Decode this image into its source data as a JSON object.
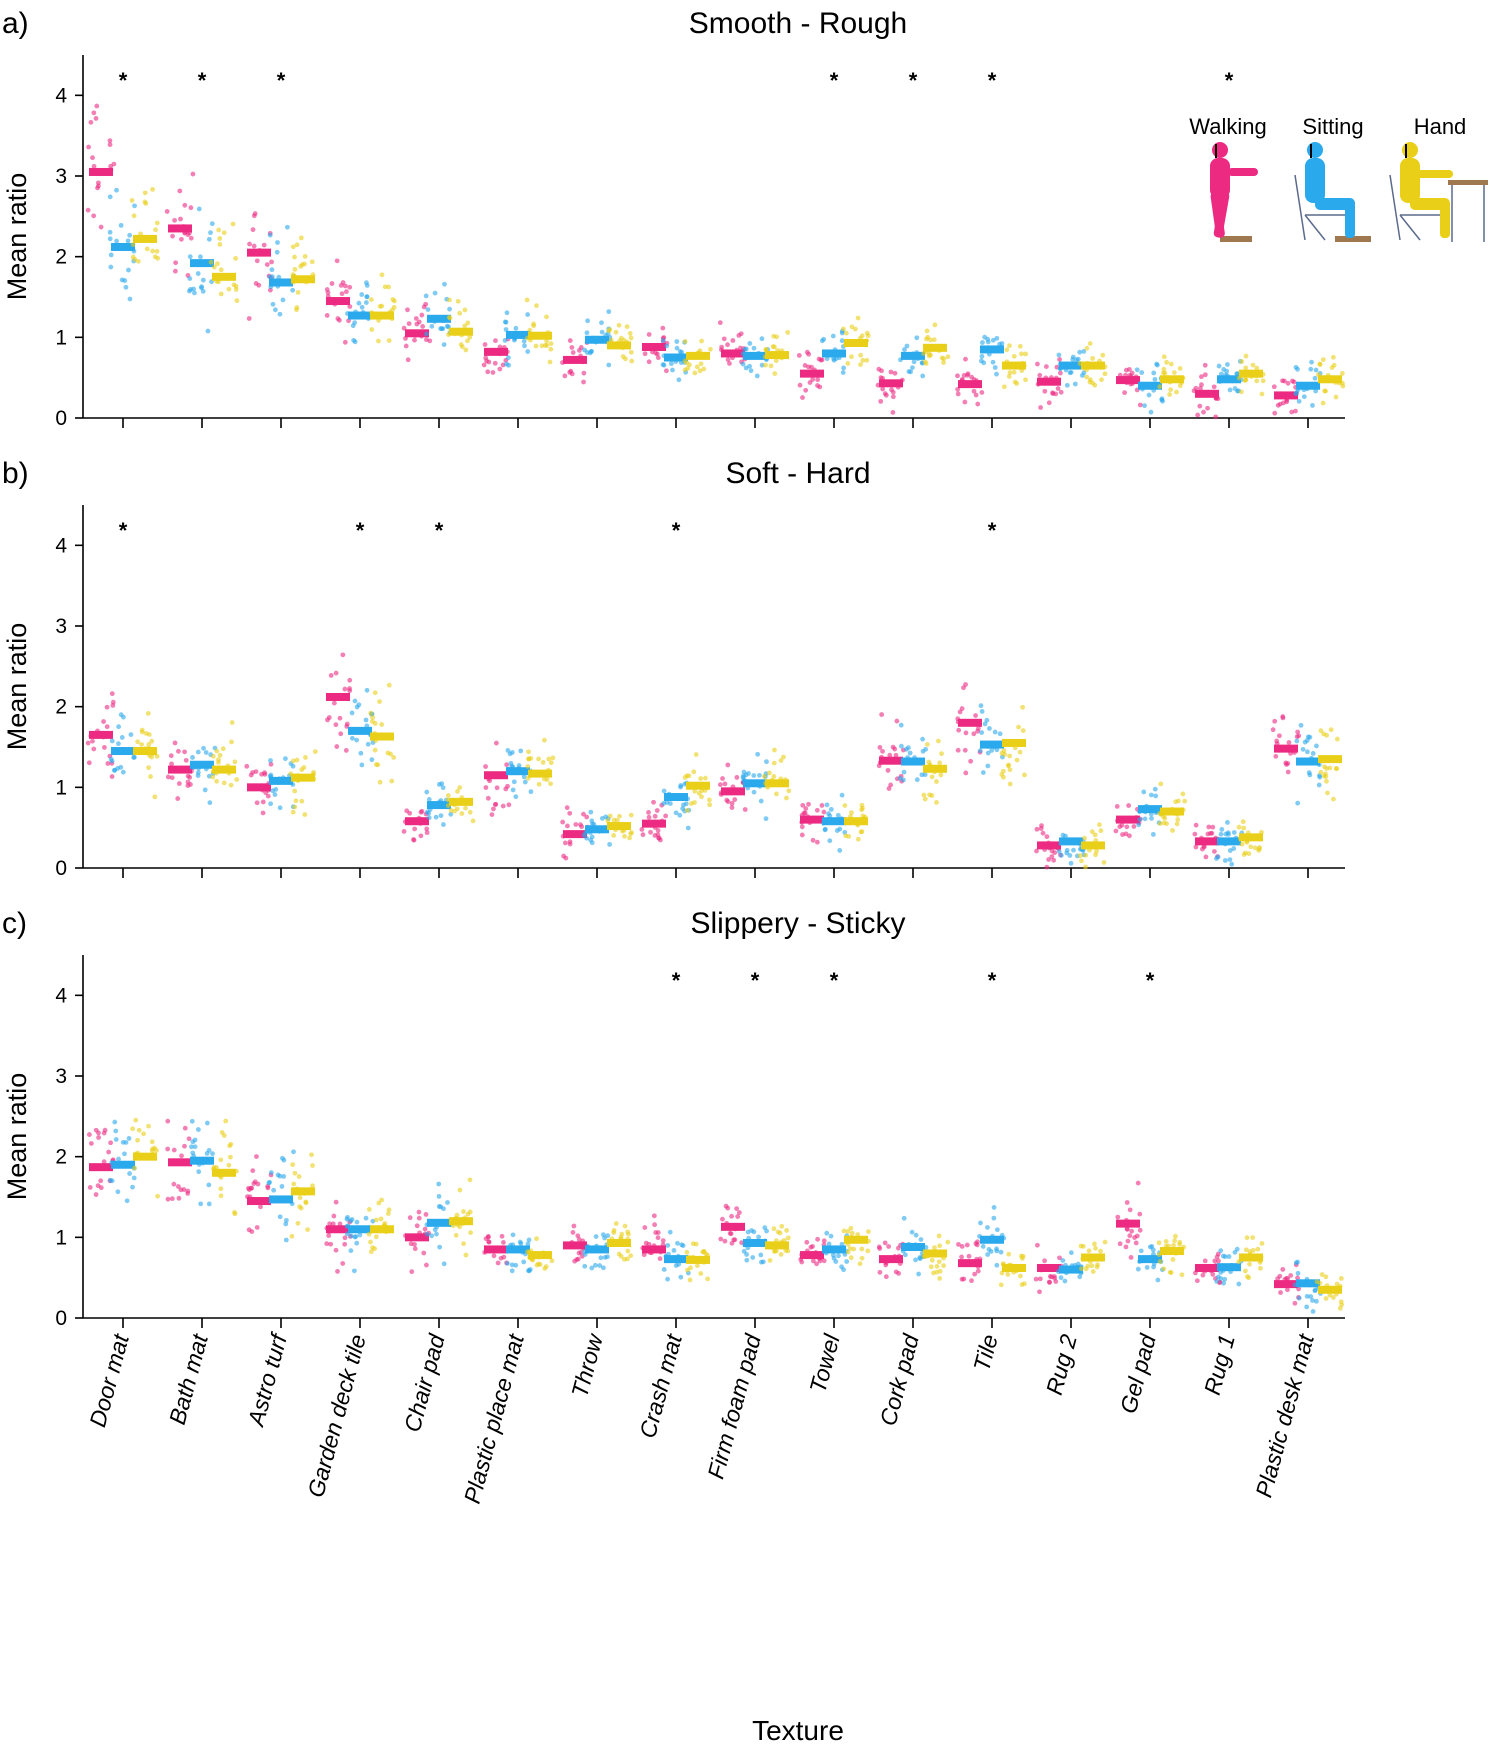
{
  "colors": {
    "walking": "#ec2a82",
    "sitting": "#2aa9ec",
    "hand": "#e9cf17",
    "marker": "#000000"
  },
  "conditions": [
    "Walking",
    "Sitting",
    "Hand"
  ],
  "categories": [
    "Door mat",
    "Bath mat",
    "Astro turf",
    "Garden deck tile",
    "Chair pad",
    "Plastic place mat",
    "Throw",
    "Crash mat",
    "Firm foam pad",
    "Towel",
    "Cork pad",
    "Tile",
    "Rug 2",
    "Gel pad",
    "Rug 1",
    "Plastic desk mat"
  ],
  "xlabel": "Texture",
  "significance_marker": "*",
  "chart_data": [
    {
      "panel": "a)",
      "type": "scatter",
      "title": "Smooth - Rough",
      "ylabel": "Mean ratio",
      "ylim": [
        0,
        4.5
      ],
      "yticks": [
        0,
        1,
        2,
        3,
        4
      ],
      "series": [
        {
          "name": "Walking",
          "means": [
            3.05,
            2.35,
            2.05,
            1.45,
            1.05,
            0.82,
            0.72,
            0.88,
            0.8,
            0.55,
            0.43,
            0.42,
            0.45,
            0.47,
            0.3,
            0.28
          ]
        },
        {
          "name": "Sitting",
          "means": [
            2.12,
            1.92,
            1.68,
            1.27,
            1.23,
            1.03,
            0.97,
            0.75,
            0.77,
            0.8,
            0.77,
            0.85,
            0.65,
            0.4,
            0.48,
            0.4
          ]
        },
        {
          "name": "Hand",
          "means": [
            2.22,
            1.75,
            1.72,
            1.27,
            1.07,
            1.02,
            0.9,
            0.77,
            0.78,
            0.93,
            0.87,
            0.65,
            0.65,
            0.48,
            0.55,
            0.48
          ]
        }
      ],
      "significant": [
        "Door mat",
        "Bath mat",
        "Astro turf",
        "Towel",
        "Cork pad",
        "Tile",
        "Rug 1"
      ]
    },
    {
      "panel": "b)",
      "type": "scatter",
      "title": "Soft - Hard",
      "ylabel": "Mean ratio",
      "ylim": [
        0,
        4.5
      ],
      "yticks": [
        0,
        1,
        2,
        3,
        4
      ],
      "series": [
        {
          "name": "Walking",
          "means": [
            1.65,
            1.22,
            1.0,
            2.12,
            0.58,
            1.15,
            0.42,
            0.55,
            0.95,
            0.6,
            1.33,
            1.8,
            0.28,
            0.6,
            0.33,
            1.48
          ]
        },
        {
          "name": "Sitting",
          "means": [
            1.45,
            1.28,
            1.08,
            1.7,
            0.78,
            1.2,
            0.48,
            0.88,
            1.05,
            0.58,
            1.32,
            1.53,
            0.33,
            0.73,
            0.33,
            1.32
          ]
        },
        {
          "name": "Hand",
          "means": [
            1.45,
            1.22,
            1.12,
            1.63,
            0.82,
            1.17,
            0.52,
            1.02,
            1.05,
            0.58,
            1.23,
            1.55,
            0.28,
            0.7,
            0.38,
            1.35
          ]
        }
      ],
      "significant": [
        "Door mat",
        "Garden deck tile",
        "Chair pad",
        "Crash mat",
        "Tile"
      ]
    },
    {
      "panel": "c)",
      "type": "scatter",
      "title": "Slippery - Sticky",
      "ylabel": "Mean ratio",
      "ylim": [
        0,
        4.5
      ],
      "yticks": [
        0,
        1,
        2,
        3,
        4
      ],
      "series": [
        {
          "name": "Walking",
          "means": [
            1.87,
            1.93,
            1.45,
            1.1,
            1.0,
            0.85,
            0.9,
            0.85,
            1.13,
            0.78,
            0.73,
            0.68,
            0.62,
            1.17,
            0.62,
            0.42
          ]
        },
        {
          "name": "Sitting",
          "means": [
            1.9,
            1.95,
            1.47,
            1.1,
            1.18,
            0.85,
            0.85,
            0.73,
            0.93,
            0.85,
            0.88,
            0.97,
            0.6,
            0.73,
            0.63,
            0.43
          ]
        },
        {
          "name": "Hand",
          "means": [
            2.0,
            1.8,
            1.57,
            1.1,
            1.2,
            0.78,
            0.93,
            0.72,
            0.9,
            0.97,
            0.8,
            0.62,
            0.75,
            0.83,
            0.75,
            0.35
          ]
        }
      ],
      "significant": [
        "Crash mat",
        "Firm foam pad",
        "Towel",
        "Tile",
        "Gel pad"
      ]
    }
  ]
}
